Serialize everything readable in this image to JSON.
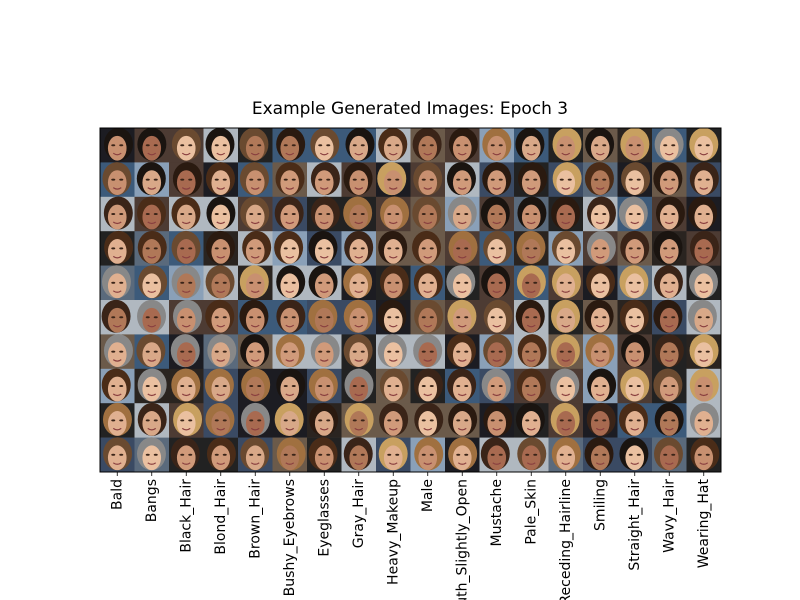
{
  "figure": {
    "title": "Example Generated Images: Epoch 3",
    "x_tick_labels": [
      "Bald",
      "Bangs",
      "Black_Hair",
      "Blond_Hair",
      "Brown_Hair",
      "Bushy_Eyebrows",
      "Eyeglasses",
      "Gray_Hair",
      "Heavy_Makeup",
      "Male",
      "Mouth_Slightly_Open",
      "Mustache",
      "Pale_Skin",
      "Receding_Hairline",
      "Smiling",
      "Straight_Hair",
      "Wavy_Hair",
      "Wearing_Hat"
    ]
  }
}
